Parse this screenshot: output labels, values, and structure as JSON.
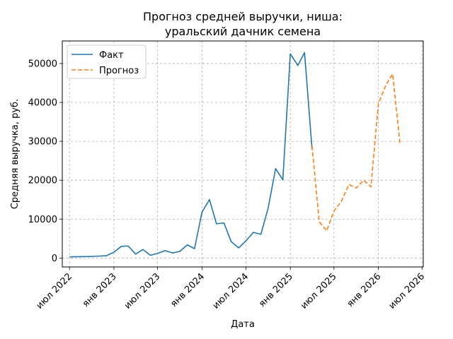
{
  "chart_data": {
    "type": "line",
    "title_lines": [
      "Прогноз средней выручки, ниша:",
      "уральский дачник семена"
    ],
    "xlabel": "Дата",
    "ylabel": "Средняя выручка, руб.",
    "xlim": [
      "2022-06-01",
      "2026-07-06"
    ],
    "ylim": [
      -2300,
      55800
    ],
    "grid": true,
    "legend_position": "top-left",
    "x_ticks": [
      {
        "date": "2022-07-01",
        "label": "июл 2022"
      },
      {
        "date": "2023-01-01",
        "label": "янв 2023"
      },
      {
        "date": "2023-07-01",
        "label": "июл 2023"
      },
      {
        "date": "2024-01-01",
        "label": "янв 2024"
      },
      {
        "date": "2024-07-01",
        "label": "июл 2024"
      },
      {
        "date": "2025-01-01",
        "label": "янв 2025"
      },
      {
        "date": "2025-07-01",
        "label": "июл 2025"
      },
      {
        "date": "2026-01-01",
        "label": "янв 2026"
      },
      {
        "date": "2026-07-01",
        "label": "июл 2026"
      }
    ],
    "y_ticks": [
      {
        "value": 0,
        "label": "0"
      },
      {
        "value": 10000,
        "label": "10000"
      },
      {
        "value": 20000,
        "label": "20000"
      },
      {
        "value": 30000,
        "label": "30000"
      },
      {
        "value": 40000,
        "label": "40000"
      },
      {
        "value": 50000,
        "label": "50000"
      }
    ],
    "series": [
      {
        "name": "Факт",
        "color": "#1f77b4",
        "dash": "solid",
        "points": [
          [
            "2022-07-01",
            300
          ],
          [
            "2022-10-01",
            400
          ],
          [
            "2022-12-01",
            600
          ],
          [
            "2023-01-01",
            1500
          ],
          [
            "2023-02-01",
            3000
          ],
          [
            "2023-03-01",
            3100
          ],
          [
            "2023-04-01",
            1000
          ],
          [
            "2023-05-01",
            2200
          ],
          [
            "2023-06-01",
            700
          ],
          [
            "2023-07-01",
            1200
          ],
          [
            "2023-08-01",
            1900
          ],
          [
            "2023-09-01",
            1300
          ],
          [
            "2023-10-01",
            1700
          ],
          [
            "2023-11-01",
            3400
          ],
          [
            "2023-12-01",
            2400
          ],
          [
            "2024-01-01",
            11800
          ],
          [
            "2024-02-01",
            15000
          ],
          [
            "2024-03-01",
            8800
          ],
          [
            "2024-04-01",
            9000
          ],
          [
            "2024-05-01",
            4200
          ],
          [
            "2024-06-01",
            2600
          ],
          [
            "2024-07-01",
            4400
          ],
          [
            "2024-08-01",
            6600
          ],
          [
            "2024-09-01",
            6100
          ],
          [
            "2024-10-01",
            12800
          ],
          [
            "2024-11-01",
            23000
          ],
          [
            "2024-12-01",
            20100
          ],
          [
            "2025-01-01",
            52500
          ],
          [
            "2025-02-01",
            49500
          ],
          [
            "2025-03-01",
            52800
          ],
          [
            "2025-04-01",
            28000
          ]
        ]
      },
      {
        "name": "Прогноз",
        "color": "#ff7f0e",
        "dash": "dashed",
        "points": [
          [
            "2025-04-01",
            28800
          ],
          [
            "2025-05-01",
            9300
          ],
          [
            "2025-06-01",
            7000
          ],
          [
            "2025-07-01",
            12100
          ],
          [
            "2025-08-01",
            14600
          ],
          [
            "2025-09-01",
            18900
          ],
          [
            "2025-10-01",
            18000
          ],
          [
            "2025-11-01",
            20000
          ],
          [
            "2025-12-01",
            18300
          ],
          [
            "2026-01-01",
            39700
          ],
          [
            "2026-02-01",
            44500
          ],
          [
            "2026-03-01",
            47300
          ],
          [
            "2026-04-01",
            29200
          ]
        ]
      }
    ]
  }
}
